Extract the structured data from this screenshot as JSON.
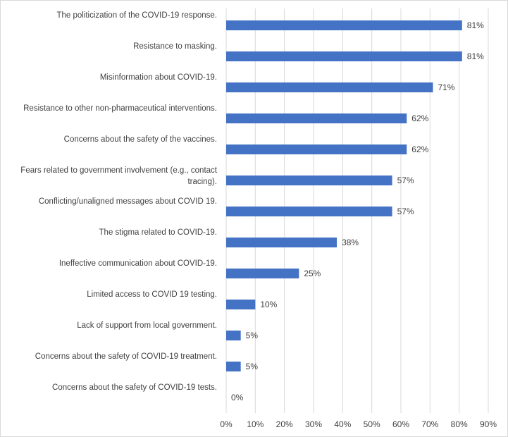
{
  "chart_data": {
    "type": "barh",
    "categories": [
      "The politicization of the COVID-19 response.",
      "Resistance to masking.",
      "Misinformation about COVID-19.",
      "Resistance to other non-pharmaceutical interventions.",
      "Concerns about the safety of the vaccines.",
      "Fears related to government involvement (e.g., contact tracing).",
      "Conflicting/unaligned messages about COVID 19.",
      "The stigma related to COVID-19.",
      "Ineffective communication about COVID-19.",
      "Limited access to COVID 19 testing.",
      "Lack of support from local government.",
      "Concerns about the safety of COVID-19 treatment.",
      "Concerns about the safety of COVID-19 tests."
    ],
    "values": [
      81,
      81,
      71,
      62,
      62,
      57,
      57,
      38,
      25,
      10,
      5,
      5,
      0
    ],
    "value_labels": [
      "81%",
      "81%",
      "71%",
      "62%",
      "62%",
      "57%",
      "57%",
      "38%",
      "25%",
      "10%",
      "5%",
      "5%",
      "0%"
    ],
    "color": "#4472c4",
    "xlim": [
      0,
      90
    ],
    "xticks": [
      {
        "value": 0,
        "label": "0%"
      },
      {
        "value": 10,
        "label": "10%"
      },
      {
        "value": 20,
        "label": "20%"
      },
      {
        "value": 30,
        "label": "30%"
      },
      {
        "value": 40,
        "label": "40%"
      },
      {
        "value": 50,
        "label": "50%"
      },
      {
        "value": 60,
        "label": "60%"
      },
      {
        "value": 70,
        "label": "70%"
      },
      {
        "value": 80,
        "label": "80%"
      },
      {
        "value": 90,
        "label": "90%"
      }
    ],
    "grid": true
  }
}
